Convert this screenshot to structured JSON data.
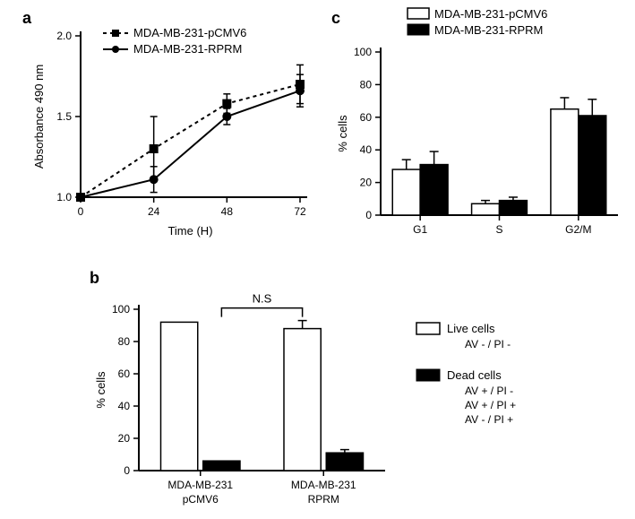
{
  "panel_a": {
    "label": "a",
    "type": "line",
    "series": [
      {
        "name": "MDA-MB-231-pCMV6",
        "marker": "square",
        "dash": "4,4",
        "x": [
          0,
          24,
          48,
          72
        ],
        "y": [
          1.0,
          1.3,
          1.58,
          1.7
        ],
        "err": [
          0,
          0.2,
          0.06,
          0.12
        ],
        "color": "#000000"
      },
      {
        "name": "MDA-MB-231-RPRM",
        "marker": "circle",
        "dash": "none",
        "x": [
          0,
          24,
          48,
          72
        ],
        "y": [
          1.0,
          1.11,
          1.5,
          1.66
        ],
        "err": [
          0,
          0.08,
          0.05,
          0.1
        ],
        "color": "#000000"
      }
    ],
    "xlabel": "Time (H)",
    "ylabel": "Absorbance 490 nm",
    "xlim": [
      0,
      72
    ],
    "xticks": [
      0,
      24,
      48,
      72
    ],
    "ylim": [
      1.0,
      2.0
    ],
    "yticks": [
      1.0,
      1.5,
      2.0
    ],
    "line_width": 2,
    "marker_size": 5,
    "label_fontsize": 13
  },
  "panel_c": {
    "label": "c",
    "type": "grouped-bar",
    "legend": [
      "MDA-MB-231-pCMV6",
      "MDA-MB-231-RPRM"
    ],
    "categories": [
      "G1",
      "S",
      "G2/M"
    ],
    "series": [
      {
        "name": "pCMV6",
        "fill": "#ffffff",
        "stroke": "#000000",
        "values": [
          28,
          7,
          65
        ],
        "err": [
          6,
          2,
          7
        ]
      },
      {
        "name": "RPRM",
        "fill": "#000000",
        "stroke": "#000000",
        "values": [
          31,
          9,
          61
        ],
        "err": [
          8,
          2,
          10
        ]
      }
    ],
    "ylabel": "% cells",
    "ylim": [
      0,
      100
    ],
    "yticks": [
      0,
      20,
      40,
      60,
      80,
      100
    ],
    "bar_width": 0.35
  },
  "panel_b": {
    "label": "b",
    "type": "grouped-bar",
    "ns_text": "N.S",
    "categories_l1": [
      "MDA-MB-231",
      "MDA-MB-231"
    ],
    "categories_l2": [
      "pCMV6",
      "RPRM"
    ],
    "series": [
      {
        "name": "Live cells",
        "fill": "#ffffff",
        "stroke": "#000000",
        "values": [
          92,
          88
        ],
        "err": [
          0,
          5
        ]
      },
      {
        "name": "Dead cells",
        "fill": "#000000",
        "stroke": "#000000",
        "values": [
          6,
          11
        ],
        "err": [
          0,
          2
        ]
      }
    ],
    "legend_live": "Live cells",
    "legend_live_sub": "AV - / PI -",
    "legend_dead": "Dead cells",
    "legend_dead_sub": [
      "AV + / PI  -",
      "AV + / PI +",
      "AV - /  PI +"
    ],
    "ylabel": "% cells",
    "ylim": [
      0,
      100
    ],
    "yticks": [
      0,
      20,
      40,
      60,
      80,
      100
    ]
  },
  "colors": {
    "background": "#ffffff",
    "axis": "#000000"
  }
}
